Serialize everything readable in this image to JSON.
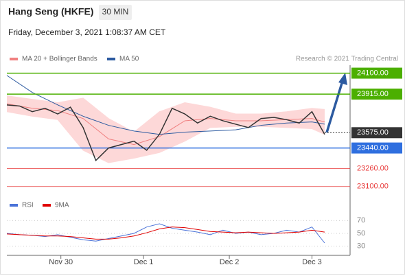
{
  "header": {
    "title": "Hang Seng (HKFE)",
    "interval": "30 MIN",
    "date": "Friday, December 3, 2021 1:08:37 AM CET"
  },
  "chart_data": [
    {
      "type": "line",
      "legend": [
        {
          "name": "MA 20 + Bollinger Bands",
          "color": "#f08080"
        },
        {
          "name": "MA 50",
          "color": "#2c5aa0"
        }
      ],
      "credit": "Research © 2021 Trading Central",
      "x": [
        0,
        4,
        8,
        12,
        16,
        20,
        24,
        28,
        32,
        36,
        40,
        44,
        48,
        52,
        56,
        60,
        64,
        68,
        72,
        76,
        80,
        84,
        88,
        92,
        96,
        100
      ],
      "xlim": [
        0,
        108
      ],
      "xticks": [
        {
          "value": 17,
          "label": "Nov 30"
        },
        {
          "value": 43,
          "label": "Dec 1"
        },
        {
          "value": 70,
          "label": "Dec 2"
        },
        {
          "value": 96,
          "label": "Dec 3"
        }
      ],
      "ylim": [
        23020,
        24170
      ],
      "series": [
        {
          "name": "Price",
          "color": "#333333",
          "values": [
            23820,
            23810,
            23760,
            23790,
            23740,
            23800,
            23620,
            23330,
            23440,
            23470,
            23500,
            23420,
            23560,
            23790,
            23740,
            23660,
            23720,
            23680,
            23650,
            23620,
            23700,
            23710,
            23690,
            23660,
            23760,
            23560
          ]
        }
      ],
      "band_x": [
        0,
        8,
        16,
        24,
        32,
        40,
        48,
        56,
        64,
        72,
        80,
        88,
        96,
        100
      ],
      "band_color": "#fdd8d8",
      "ma20": [
        23830,
        23790,
        23770,
        23700,
        23520,
        23470,
        23540,
        23680,
        23700,
        23680,
        23680,
        23690,
        23700,
        23670
      ],
      "band_upper": [
        23900,
        23870,
        23840,
        23880,
        23700,
        23580,
        23760,
        23840,
        23800,
        23740,
        23740,
        23760,
        23790,
        23780
      ],
      "band_lower": [
        23760,
        23720,
        23690,
        23420,
        23310,
        23350,
        23400,
        23500,
        23620,
        23630,
        23630,
        23620,
        23610,
        23560
      ],
      "ma50": [
        24080,
        23930,
        23820,
        23720,
        23640,
        23590,
        23560,
        23580,
        23590,
        23600,
        23640,
        23660,
        23670,
        23650
      ],
      "levels": [
        {
          "value": 24100,
          "label": "24100.00",
          "color": "#4caf00",
          "style": "box"
        },
        {
          "value": 23915,
          "label": "23915.00",
          "color": "#4caf00",
          "style": "box"
        },
        {
          "value": 23575,
          "label": "23575.00",
          "color": "#333333",
          "style": "marker"
        },
        {
          "value": 23440,
          "label": "23440.00",
          "color": "#2f6fdf",
          "style": "box"
        },
        {
          "value": 23260,
          "label": "23260.00",
          "color": "#e83a3a",
          "style": "plain"
        },
        {
          "value": 23100,
          "label": "23100.00",
          "color": "#e83a3a",
          "style": "plain"
        }
      ]
    },
    {
      "type": "line",
      "x": [
        0,
        4,
        8,
        12,
        16,
        20,
        24,
        28,
        32,
        36,
        40,
        44,
        48,
        52,
        56,
        60,
        64,
        68,
        72,
        76,
        80,
        84,
        88,
        92,
        96,
        100
      ],
      "xlim": [
        0,
        108
      ],
      "ylim": [
        20,
        80
      ],
      "yticks": [
        30,
        50,
        70
      ],
      "series": [
        {
          "name": "RSI",
          "color": "#4a72d8",
          "values": [
            50,
            48,
            47,
            45,
            48,
            44,
            40,
            38,
            42,
            46,
            50,
            60,
            65,
            58,
            55,
            52,
            48,
            55,
            50,
            52,
            48,
            50,
            55,
            52,
            60,
            35
          ]
        },
        {
          "name": "9MA",
          "color": "#e00000",
          "values": [
            49,
            48,
            47,
            46,
            46,
            45,
            43,
            41,
            41,
            43,
            46,
            51,
            57,
            60,
            59,
            56,
            53,
            52,
            51,
            52,
            51,
            50,
            51,
            52,
            55,
            52
          ]
        }
      ]
    }
  ]
}
